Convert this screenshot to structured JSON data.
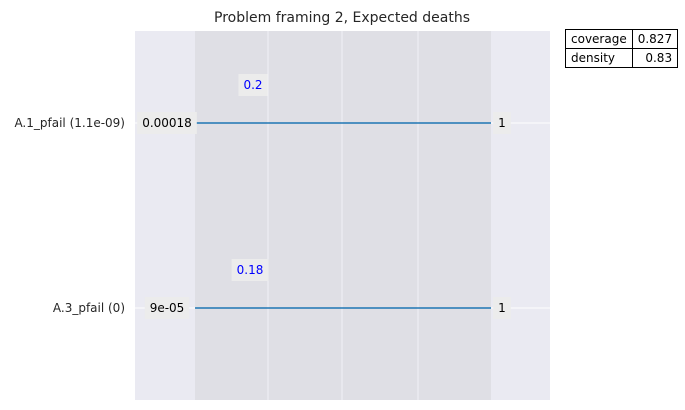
{
  "chart_data": {
    "type": "box-limits",
    "title": "Problem framing 2, Expected deaths",
    "dimensions": [
      {
        "label": "A.1_pfail (1.1e-09)",
        "lower": 0.00018,
        "upper": 1,
        "lower_label": "0.00018",
        "upper_label": "1",
        "qp": "0.2"
      },
      {
        "label": "A.3_pfail (0)",
        "lower": 9e-05,
        "upper": 1,
        "lower_label": "9e-05",
        "upper_label": "1",
        "qp": "0.18"
      }
    ],
    "stats": [
      {
        "name": "coverage",
        "value": "0.827"
      },
      {
        "name": "density",
        "value": "0.83"
      }
    ],
    "colors": {
      "axes_bg": "#eaeaf2",
      "box_bg": "#dfdfe5",
      "line": "#1f77b4",
      "qp_text": "#0000ff",
      "label_bg": "#ececec"
    }
  }
}
